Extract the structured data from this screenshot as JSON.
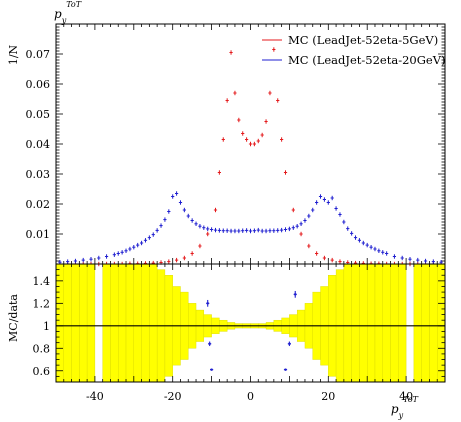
{
  "top_ylabel": "1/N",
  "top_title": "p_y^ToT",
  "bottom_ylabel": "MC/data",
  "xlabel": "p_y^ToT",
  "colors": {
    "mc1": "#e41a1c",
    "mc2": "#1f1fd0",
    "band": "#ffff00",
    "band_edge": "#d8d800",
    "axis": "#000000"
  },
  "chart_data": [
    {
      "type": "scatter",
      "panel": "main",
      "xlim": [
        -50,
        50
      ],
      "ylim": [
        0,
        0.08
      ],
      "yticks": [
        "0.01",
        "0.02",
        "0.03",
        "0.04",
        "0.05",
        "0.06",
        "0.07"
      ],
      "legend_position": "top-right",
      "series": [
        {
          "name": "MC (LeadJet-52eta-5GeV)",
          "color": "#e41a1c",
          "x": [
            -49,
            -47,
            -45,
            -43,
            -41,
            -39,
            -37,
            -35,
            -33,
            -31,
            -29,
            -27,
            -25,
            -23,
            -21,
            -19,
            -17,
            -15,
            -13,
            -11,
            -9,
            -8,
            -7,
            -6,
            -5,
            -4,
            -3,
            -2,
            -1,
            0,
            1,
            2,
            3,
            4,
            5,
            6,
            7,
            8,
            9,
            11,
            13,
            15,
            17,
            19,
            21,
            23,
            25,
            27,
            29,
            31,
            33,
            35,
            37,
            39,
            41,
            43,
            45,
            47,
            49
          ],
          "y": [
            0.0,
            0.0,
            0.0,
            0.0,
            0.0,
            0.0,
            0.0,
            0.0,
            0.0,
            0.0001,
            0.0001,
            0.0002,
            0.0003,
            0.0005,
            0.0008,
            0.0013,
            0.002,
            0.0035,
            0.006,
            0.01,
            0.018,
            0.0305,
            0.0415,
            0.0545,
            0.0705,
            0.057,
            0.048,
            0.0435,
            0.0415,
            0.04,
            0.04,
            0.041,
            0.043,
            0.0475,
            0.057,
            0.0715,
            0.0545,
            0.0415,
            0.0305,
            0.018,
            0.01,
            0.006,
            0.0035,
            0.002,
            0.0013,
            0.0008,
            0.0005,
            0.0003,
            0.0002,
            0.0001,
            0.0001,
            0.0,
            0.0,
            0.0,
            0.0,
            0.0,
            0.0,
            0.0,
            0.0
          ]
        },
        {
          "name": "MC (LeadJet-52eta-20GeV)",
          "color": "#1f1fd0",
          "x": [
            -49,
            -47,
            -45,
            -43,
            -41,
            -39,
            -37,
            -35,
            -34,
            -33,
            -32,
            -31,
            -30,
            -29,
            -28,
            -27,
            -26,
            -25,
            -24,
            -23,
            -22,
            -21,
            -20,
            -19,
            -18,
            -17,
            -16,
            -15,
            -14,
            -13,
            -12,
            -11,
            -10,
            -9,
            -8,
            -7,
            -6,
            -5,
            -4,
            -3,
            -2,
            -1,
            0,
            1,
            2,
            3,
            4,
            5,
            6,
            7,
            8,
            9,
            10,
            11,
            12,
            13,
            14,
            15,
            16,
            17,
            18,
            19,
            20,
            21,
            22,
            23,
            24,
            25,
            26,
            27,
            28,
            29,
            30,
            31,
            32,
            33,
            34,
            35,
            37,
            39,
            41,
            43,
            45,
            47,
            49
          ],
          "y": [
            0.0006,
            0.0008,
            0.001,
            0.0013,
            0.0016,
            0.002,
            0.0025,
            0.0031,
            0.0035,
            0.0039,
            0.0044,
            0.005,
            0.0056,
            0.0063,
            0.007,
            0.0079,
            0.0088,
            0.0098,
            0.0112,
            0.0128,
            0.0148,
            0.0175,
            0.0225,
            0.0235,
            0.0205,
            0.018,
            0.016,
            0.0145,
            0.0134,
            0.0126,
            0.0121,
            0.0117,
            0.0115,
            0.0113,
            0.0112,
            0.0111,
            0.0111,
            0.011,
            0.011,
            0.011,
            0.0111,
            0.0112,
            0.011,
            0.0111,
            0.0113,
            0.011,
            0.011,
            0.0111,
            0.0111,
            0.0112,
            0.0113,
            0.0115,
            0.0117,
            0.0121,
            0.0126,
            0.0134,
            0.0145,
            0.016,
            0.018,
            0.0205,
            0.0225,
            0.0215,
            0.0205,
            0.022,
            0.0185,
            0.0165,
            0.014,
            0.0118,
            0.0102,
            0.0088,
            0.0079,
            0.007,
            0.0063,
            0.0056,
            0.005,
            0.0044,
            0.0039,
            0.0035,
            0.0025,
            0.002,
            0.0016,
            0.0013,
            0.001,
            0.0008,
            0.0006
          ]
        }
      ]
    },
    {
      "type": "scatter",
      "panel": "ratio",
      "xlim": [
        -50,
        50
      ],
      "ylim": [
        0.5,
        1.55
      ],
      "yticks": [
        "0.6",
        "0.8",
        "1",
        "1.2",
        "1.4"
      ],
      "xticks": [
        "-40",
        "-20",
        "0",
        "20",
        "40"
      ],
      "xtick_values": [
        -40,
        -20,
        0,
        20,
        40
      ],
      "reference_line": 1,
      "band": {
        "x_edges": [
          -50,
          -48,
          -46,
          -44,
          -42,
          -40,
          -38,
          -36,
          -34,
          -32,
          -30,
          -28,
          -26,
          -24,
          -22,
          -20,
          -18,
          -16,
          -14,
          -12,
          -10,
          -8,
          -6,
          -4,
          -2,
          0,
          2,
          4,
          6,
          8,
          10,
          12,
          14,
          16,
          18,
          20,
          22,
          24,
          26,
          28,
          30,
          32,
          34,
          36,
          38,
          40,
          42,
          44,
          46,
          48,
          50
        ],
        "half_width": [
          0.9,
          0.9,
          0.9,
          0.9,
          0.9,
          0,
          0.9,
          0.9,
          0.9,
          0.9,
          0.9,
          0.55,
          0.55,
          0.5,
          0.45,
          0.35,
          0.3,
          0.2,
          0.14,
          0.1,
          0.07,
          0.05,
          0.03,
          0.02,
          0.02,
          0.02,
          0.02,
          0.03,
          0.05,
          0.07,
          0.1,
          0.14,
          0.2,
          0.3,
          0.35,
          0.45,
          0.5,
          0.55,
          0.55,
          0.9,
          0.9,
          0.9,
          0.9,
          0.9,
          0.9,
          0,
          0.9,
          0.9,
          0.9,
          0.9
        ]
      },
      "series": [
        {
          "name": "MC (LeadJet-52eta-5GeV)",
          "color": "#e41a1c",
          "x": [],
          "y": []
        },
        {
          "name": "MC (LeadJet-52eta-20GeV)",
          "color": "#1f1fd0",
          "x": [
            -11,
            -10.5,
            -10,
            10,
            11.5,
            9
          ],
          "y": [
            1.2,
            0.84,
            0.61,
            0.84,
            1.28,
            0.61
          ],
          "err": [
            0.03,
            0.02,
            0.01,
            0.02,
            0.03,
            0.01
          ]
        }
      ]
    }
  ]
}
